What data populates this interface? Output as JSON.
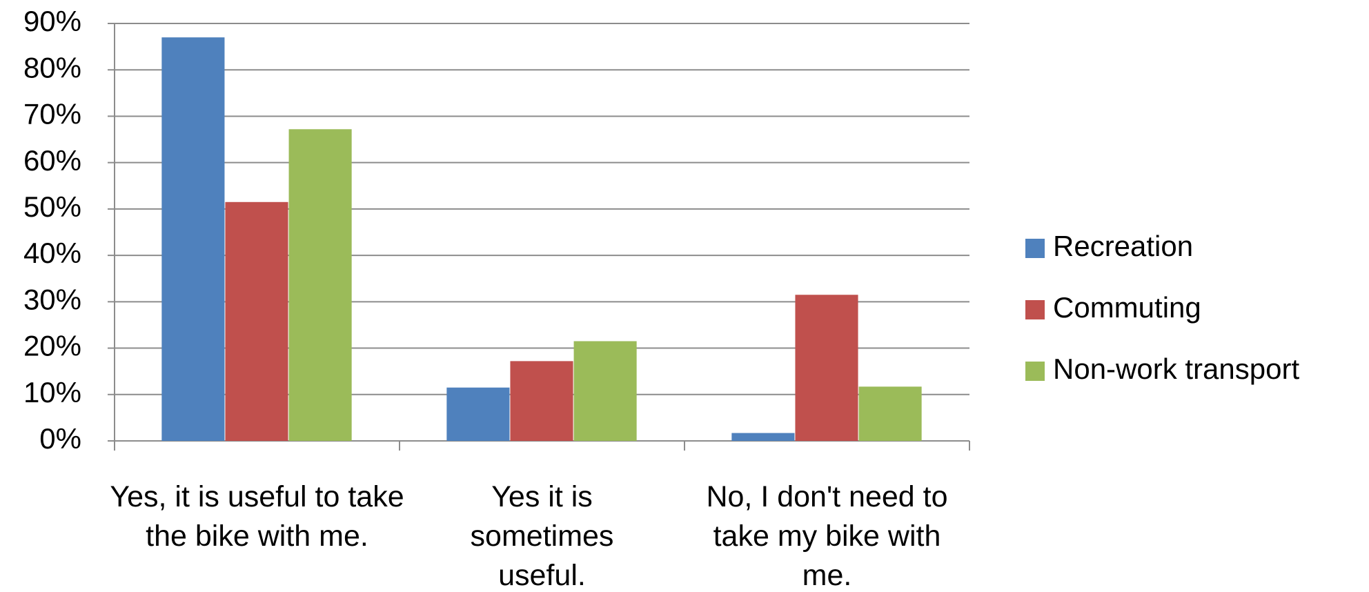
{
  "chart_data": {
    "type": "bar",
    "categories": [
      "Yes, it is useful to take the bike with me.",
      "Yes it is sometimes useful.",
      "No, I don't need to take my bike with me."
    ],
    "series": [
      {
        "name": "Recreation",
        "color": "#4f81bd",
        "values": [
          87,
          11.5,
          1.7
        ]
      },
      {
        "name": "Commuting",
        "color": "#c0504d",
        "values": [
          51.5,
          17.2,
          31.5
        ]
      },
      {
        "name": "Non-work transport",
        "color": "#9bbb59",
        "values": [
          67.2,
          21.5,
          11.7
        ]
      }
    ],
    "ylim": [
      0,
      90
    ],
    "yticks": [
      {
        "value": 0,
        "label": "0%"
      },
      {
        "value": 10,
        "label": "10%"
      },
      {
        "value": 20,
        "label": "20%"
      },
      {
        "value": 30,
        "label": "30%"
      },
      {
        "value": 40,
        "label": "40%"
      },
      {
        "value": 50,
        "label": "50%"
      },
      {
        "value": 60,
        "label": "60%"
      },
      {
        "value": 70,
        "label": "70%"
      },
      {
        "value": 80,
        "label": "80%"
      },
      {
        "value": 90,
        "label": "90%"
      }
    ],
    "grid": true,
    "legend": "right"
  }
}
